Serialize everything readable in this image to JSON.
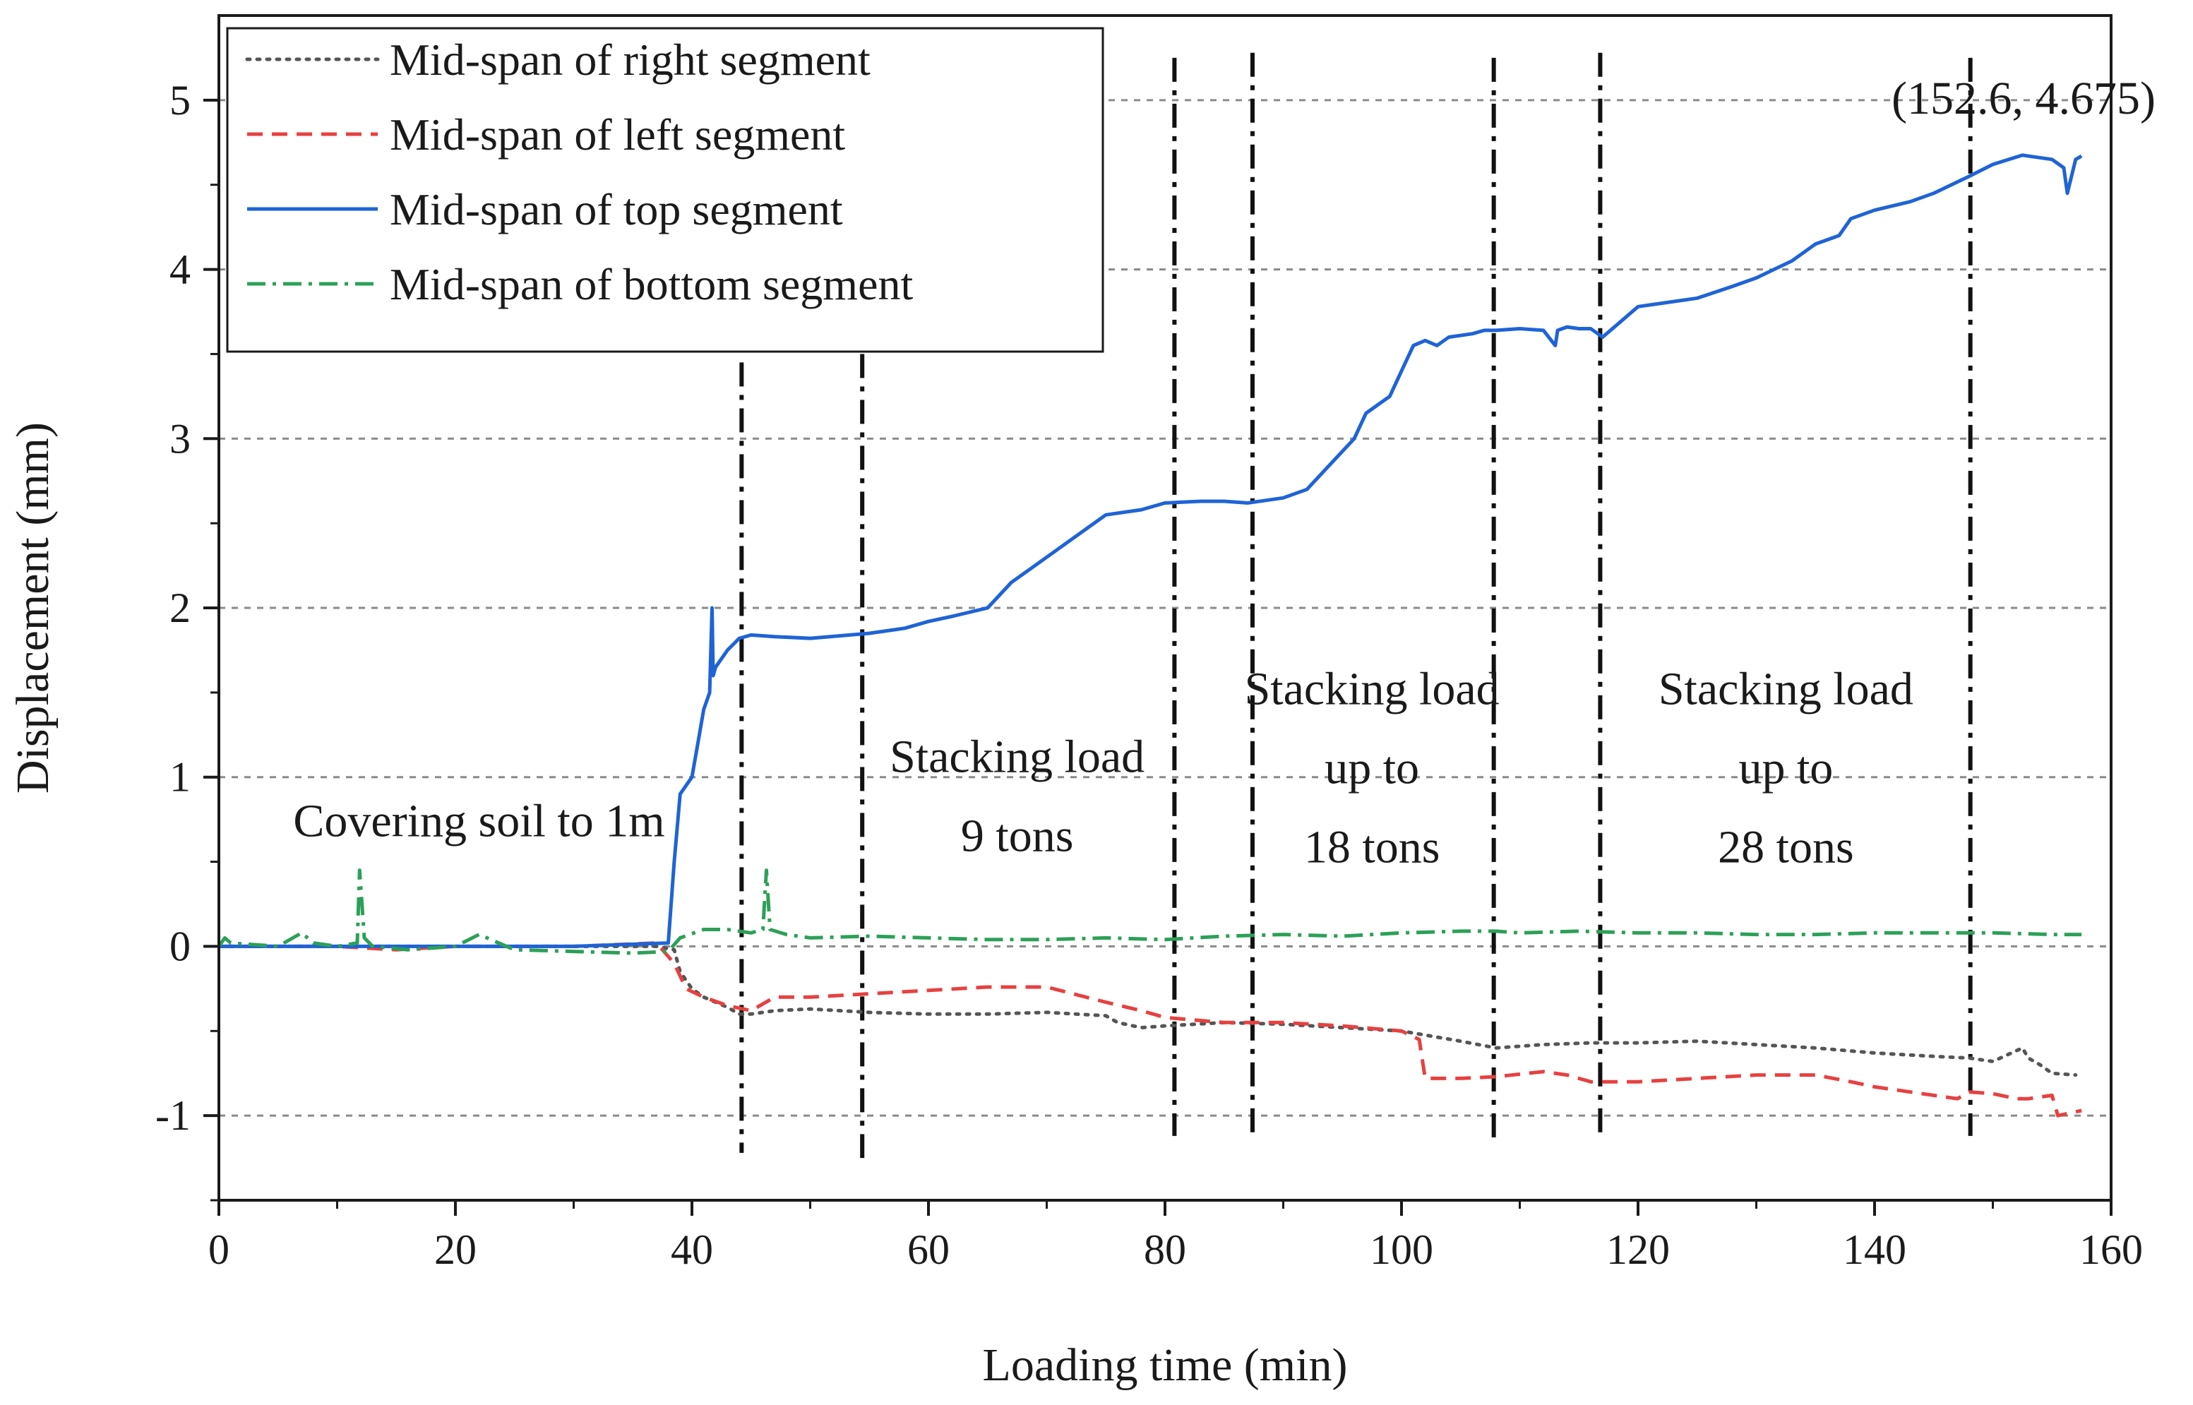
{
  "chart_data": {
    "type": "line",
    "xlabel": "Loading time (min)",
    "ylabel": "Displacement (mm)",
    "xlim": [
      0,
      160
    ],
    "ylim": [
      -1.5,
      5.5
    ],
    "xticks": [
      0,
      20,
      40,
      60,
      80,
      100,
      120,
      140,
      160
    ],
    "yticks": [
      -1,
      0,
      1,
      2,
      3,
      4,
      5
    ],
    "yticks_labels": [
      "-1",
      "0",
      "1",
      "2",
      "3",
      "4",
      "5"
    ],
    "horizontal_gridlines": [
      -1,
      0,
      1,
      2,
      3,
      4,
      5
    ],
    "legend_position": "top-left",
    "series": [
      {
        "name": "Mid-span of right segment",
        "color": "#555555",
        "style": "dotted",
        "x": [
          0,
          10,
          20,
          30,
          37,
          38.5,
          39,
          40,
          41,
          42,
          43,
          44,
          45,
          47,
          50,
          55,
          60,
          65,
          70,
          75,
          76,
          78,
          80,
          85,
          90,
          95,
          100,
          105,
          108,
          112,
          116,
          120,
          125,
          130,
          135,
          140,
          145,
          148,
          150,
          152.5,
          153,
          154,
          155,
          157
        ],
        "y": [
          0,
          0,
          0,
          0,
          0,
          -0.02,
          -0.15,
          -0.25,
          -0.3,
          -0.33,
          -0.36,
          -0.4,
          -0.4,
          -0.38,
          -0.37,
          -0.39,
          -0.4,
          -0.4,
          -0.39,
          -0.41,
          -0.45,
          -0.48,
          -0.47,
          -0.45,
          -0.46,
          -0.48,
          -0.5,
          -0.56,
          -0.6,
          -0.58,
          -0.57,
          -0.57,
          -0.56,
          -0.58,
          -0.6,
          -0.63,
          -0.65,
          -0.66,
          -0.68,
          -0.6,
          -0.66,
          -0.7,
          -0.75,
          -0.76
        ]
      },
      {
        "name": "Mid-span of left segment",
        "color": "#e84040",
        "style": "dashed",
        "x": [
          0,
          10,
          15,
          20,
          30,
          37,
          38.5,
          39.5,
          41,
          43,
          45,
          47,
          50,
          55,
          60,
          65,
          70,
          75,
          78,
          80,
          85,
          90,
          95,
          100,
          101.5,
          102,
          105,
          108,
          112,
          114,
          116,
          120,
          125,
          130,
          135,
          138,
          140,
          145,
          147,
          148,
          150,
          152,
          153,
          155,
          155.5,
          157.5
        ],
        "y": [
          0,
          0,
          -0.02,
          0,
          0,
          0.02,
          -0.1,
          -0.25,
          -0.3,
          -0.35,
          -0.38,
          -0.3,
          -0.3,
          -0.28,
          -0.26,
          -0.24,
          -0.24,
          -0.33,
          -0.38,
          -0.42,
          -0.45,
          -0.45,
          -0.47,
          -0.5,
          -0.55,
          -0.78,
          -0.78,
          -0.77,
          -0.74,
          -0.76,
          -0.8,
          -0.8,
          -0.78,
          -0.76,
          -0.76,
          -0.8,
          -0.83,
          -0.88,
          -0.9,
          -0.86,
          -0.87,
          -0.9,
          -0.9,
          -0.88,
          -1.0,
          -0.97
        ]
      },
      {
        "name": "Mid-span of top segment",
        "color": "#1f63d6",
        "style": "solid",
        "x": [
          0,
          10,
          20,
          30,
          38,
          38.5,
          39,
          40,
          40.5,
          41,
          41.5,
          41.7,
          41.8,
          42,
          42.5,
          43,
          44,
          45,
          47,
          50,
          55,
          58,
          60,
          62,
          65,
          67,
          69,
          71,
          73,
          75,
          78,
          80,
          83,
          85,
          87,
          90,
          92,
          94,
          96,
          97,
          98,
          99,
          100,
          101,
          102,
          103,
          104,
          106,
          107,
          108,
          110,
          112,
          113,
          113.2,
          114,
          115,
          116,
          117,
          120,
          122,
          125,
          128,
          130,
          133,
          135,
          137,
          138,
          140,
          143,
          145,
          148,
          150,
          152.5,
          155,
          156,
          156.3,
          157,
          157.5
        ],
        "y": [
          0,
          0,
          0,
          0,
          0.02,
          0.5,
          0.9,
          1.0,
          1.2,
          1.4,
          1.5,
          2.0,
          1.6,
          1.65,
          1.7,
          1.75,
          1.82,
          1.84,
          1.83,
          1.82,
          1.85,
          1.88,
          1.92,
          1.95,
          2.0,
          2.15,
          2.25,
          2.35,
          2.45,
          2.55,
          2.58,
          2.62,
          2.63,
          2.63,
          2.62,
          2.65,
          2.7,
          2.85,
          3.0,
          3.15,
          3.2,
          3.25,
          3.4,
          3.55,
          3.58,
          3.55,
          3.6,
          3.62,
          3.64,
          3.64,
          3.65,
          3.64,
          3.55,
          3.64,
          3.66,
          3.65,
          3.65,
          3.6,
          3.78,
          3.8,
          3.83,
          3.9,
          3.95,
          4.05,
          4.15,
          4.2,
          4.3,
          4.35,
          4.4,
          4.45,
          4.55,
          4.62,
          4.675,
          4.65,
          4.6,
          4.45,
          4.65,
          4.67
        ]
      },
      {
        "name": "Mid-span of bottom segment",
        "color": "#2ca058",
        "style": "dashdot",
        "x": [
          0,
          0.5,
          1,
          5,
          7,
          8,
          10,
          11.7,
          11.9,
          12.3,
          13,
          16,
          20,
          22,
          25,
          30,
          35,
          38,
          39,
          41,
          43,
          45,
          46,
          46.3,
          46.6,
          48,
          50,
          55,
          60,
          65,
          70,
          75,
          80,
          85,
          90,
          95,
          100,
          105,
          108,
          110,
          115,
          120,
          125,
          130,
          135,
          140,
          145,
          150,
          155,
          157.5
        ],
        "y": [
          0,
          0.05,
          0.02,
          0,
          0.08,
          0.02,
          0,
          0.02,
          0.45,
          0.05,
          0,
          -0.02,
          0,
          0.07,
          -0.02,
          -0.03,
          -0.04,
          -0.03,
          0.05,
          0.1,
          0.1,
          0.08,
          0.1,
          0.45,
          0.1,
          0.07,
          0.05,
          0.06,
          0.05,
          0.04,
          0.04,
          0.05,
          0.04,
          0.06,
          0.07,
          0.06,
          0.08,
          0.09,
          0.09,
          0.08,
          0.09,
          0.08,
          0.08,
          0.07,
          0.07,
          0.08,
          0.08,
          0.08,
          0.07,
          0.07
        ]
      }
    ],
    "vlines": [
      {
        "x": 44.2,
        "y_top": 3.45,
        "y_bottom": -1.22
      },
      {
        "x": 54.4,
        "y_top": 3.5,
        "y_bottom": -1.25
      },
      {
        "x": 80.8,
        "y_top": 5.25,
        "y_bottom": -1.12
      },
      {
        "x": 87.4,
        "y_top": 5.28,
        "y_bottom": -1.12
      },
      {
        "x": 107.8,
        "y_top": 5.25,
        "y_bottom": -1.15
      },
      {
        "x": 116.8,
        "y_top": 5.28,
        "y_bottom": -1.12
      },
      {
        "x": 148.1,
        "y_top": 5.25,
        "y_bottom": -1.12
      }
    ],
    "annotations": [
      {
        "lines": [
          "Covering soil to 1m"
        ],
        "x": 22,
        "y": 0.65
      },
      {
        "lines": [
          "Stacking load",
          "9 tons"
        ],
        "x": 67.5,
        "y": 1.03
      },
      {
        "lines": [
          "Stacking load",
          "up to",
          "18 tons"
        ],
        "x": 97.5,
        "y": 1.43
      },
      {
        "lines": [
          "Stacking load",
          "up to",
          "28 tons"
        ],
        "x": 132.5,
        "y": 1.43
      },
      {
        "lines": [
          "(152.6, 4.675)"
        ],
        "x": 152.6,
        "y": 4.92
      }
    ]
  }
}
